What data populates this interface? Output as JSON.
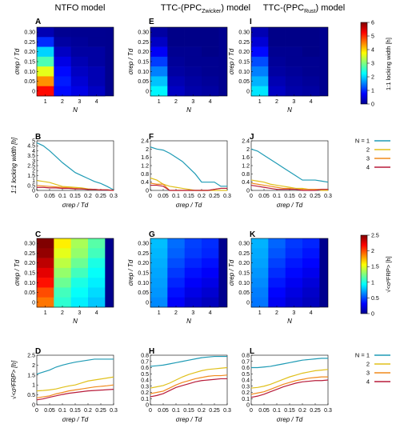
{
  "figure": {
    "column_titles": [
      "NTFO model",
      "TTC-(PPC",
      "TTC-(PPC"
    ],
    "column_title_subs": [
      "",
      "Zwicker",
      "Rust"
    ],
    "column_title_tails": [
      "",
      ") model",
      ") model"
    ],
    "panel_labels": [
      "A",
      "E",
      "I",
      "B",
      "F",
      "J",
      "C",
      "G",
      "K",
      "D",
      "H",
      "L"
    ]
  },
  "chart_data": [
    {
      "id": "A",
      "type": "heatmap",
      "x": [
        1,
        2,
        3,
        4
      ],
      "y": [
        0,
        0.05,
        0.1,
        0.15,
        0.2,
        0.25,
        0.3
      ],
      "z": [
        [
          5.2,
          0.8,
          0.6,
          0.4
        ],
        [
          4.4,
          0.9,
          0.5,
          0.3
        ],
        [
          3.6,
          0.8,
          0.4,
          0.3
        ],
        [
          2.7,
          0.6,
          0.3,
          0.2
        ],
        [
          2.0,
          0.4,
          0.2,
          0.2
        ],
        [
          1.0,
          0.2,
          0.15,
          0.1
        ],
        [
          0.3,
          0.1,
          0.1,
          0.1
        ]
      ],
      "zlim": [
        0,
        6
      ],
      "xlabel": "N",
      "ylabel": "σrep / Td"
    },
    {
      "id": "E",
      "type": "heatmap",
      "x": [
        1,
        2,
        3,
        4
      ],
      "y": [
        0,
        0.05,
        0.1,
        0.15,
        0.2,
        0.25,
        0.3
      ],
      "z": [
        [
          2.2,
          0.4,
          0.25,
          0.2
        ],
        [
          1.9,
          0.3,
          0.2,
          0.15
        ],
        [
          1.5,
          0.2,
          0.15,
          0.1
        ],
        [
          1.1,
          0.15,
          0.1,
          0.1
        ],
        [
          0.7,
          0.1,
          0.1,
          0.05
        ],
        [
          0.4,
          0.05,
          0.05,
          0.05
        ],
        [
          0.2,
          0.05,
          0.05,
          0.05
        ]
      ],
      "zlim": [
        0,
        6
      ],
      "xlabel": "N",
      "ylabel": "σrep / Td"
    },
    {
      "id": "I",
      "type": "heatmap",
      "x": [
        1,
        2,
        3,
        4
      ],
      "y": [
        0,
        0.05,
        0.1,
        0.15,
        0.2,
        0.25,
        0.3
      ],
      "z": [
        [
          2.1,
          0.4,
          0.25,
          0.2
        ],
        [
          1.8,
          0.3,
          0.2,
          0.15
        ],
        [
          1.5,
          0.2,
          0.15,
          0.1
        ],
        [
          1.2,
          0.15,
          0.1,
          0.1
        ],
        [
          0.8,
          0.1,
          0.1,
          0.05
        ],
        [
          0.5,
          0.05,
          0.05,
          0.05
        ],
        [
          0.3,
          0.05,
          0.05,
          0.05
        ]
      ],
      "zlim": [
        0,
        6
      ],
      "xlabel": "N",
      "ylabel": "σrep / Td"
    },
    {
      "id": "B",
      "type": "line",
      "x": [
        0,
        0.025,
        0.05,
        0.075,
        0.1,
        0.125,
        0.15,
        0.175,
        0.2,
        0.225,
        0.25,
        0.275,
        0.3
      ],
      "series": [
        {
          "name": "1",
          "color": "#1f9bb5",
          "values": [
            4.8,
            4.5,
            4.0,
            3.4,
            2.8,
            2.3,
            1.8,
            1.5,
            1.2,
            0.9,
            0.7,
            0.4,
            0.05
          ]
        },
        {
          "name": "2",
          "color": "#e0c01a",
          "values": [
            1.0,
            0.9,
            0.8,
            0.6,
            0.4,
            0.35,
            0.3,
            0.25,
            0.15,
            0.1,
            0.05,
            0.05,
            0.0
          ]
        },
        {
          "name": "3",
          "color": "#f08a1c",
          "values": [
            0.5,
            0.45,
            0.4,
            0.35,
            0.3,
            0.25,
            0.2,
            0.15,
            0.1,
            0.1,
            0.05,
            0.05,
            0.0
          ]
        },
        {
          "name": "4",
          "color": "#b81c3a",
          "values": [
            0.3,
            0.3,
            0.25,
            0.25,
            0.2,
            0.2,
            0.15,
            0.15,
            0.1,
            0.1,
            0.05,
            0.05,
            0.0
          ]
        }
      ],
      "ylim": [
        0,
        5
      ],
      "yticks": [
        0,
        0.5,
        1,
        1.5,
        2,
        2.5,
        3,
        3.5,
        4,
        4.5,
        5
      ],
      "xlabel": "σrep / Td",
      "ylabel": "1:1 locking width [h]"
    },
    {
      "id": "F",
      "type": "line",
      "x": [
        0,
        0.025,
        0.05,
        0.075,
        0.1,
        0.125,
        0.15,
        0.175,
        0.2,
        0.225,
        0.25,
        0.275,
        0.3
      ],
      "series": [
        {
          "name": "1",
          "color": "#1f9bb5",
          "values": [
            2.1,
            2.0,
            1.95,
            1.8,
            1.6,
            1.4,
            1.1,
            0.8,
            0.4,
            0.4,
            0.4,
            0.2,
            0.2
          ]
        },
        {
          "name": "2",
          "color": "#e0c01a",
          "values": [
            0.6,
            0.5,
            0.3,
            0.2,
            0.15,
            0.1,
            0.05,
            0.0,
            0.0,
            0.0,
            0.0,
            0.0,
            0.0
          ]
        },
        {
          "name": "3",
          "color": "#f08a1c",
          "values": [
            0.35,
            0.3,
            0.3,
            0.0,
            0.0,
            0.0,
            0.0,
            0.0,
            0.0,
            0.0,
            0.05,
            0.1,
            0.1
          ]
        },
        {
          "name": "4",
          "color": "#b81c3a",
          "values": [
            0.25,
            0.25,
            0.2,
            0.0,
            0.0,
            0.0,
            0.0,
            0.0,
            0.0,
            0.0,
            0.05,
            0.1,
            0.1
          ]
        }
      ],
      "ylim": [
        0,
        2.4
      ],
      "yticks": [
        0,
        0.4,
        0.8,
        1.2,
        1.6,
        2,
        2.4
      ],
      "xlabel": "σrep / Td",
      "ylabel": ""
    },
    {
      "id": "J",
      "type": "line",
      "x": [
        0,
        0.025,
        0.05,
        0.075,
        0.1,
        0.125,
        0.15,
        0.175,
        0.2,
        0.225,
        0.25,
        0.275,
        0.3
      ],
      "series": [
        {
          "name": "1",
          "color": "#1f9bb5",
          "values": [
            2.0,
            1.9,
            1.7,
            1.5,
            1.3,
            1.1,
            0.9,
            0.7,
            0.5,
            0.5,
            0.5,
            0.45,
            0.4
          ]
        },
        {
          "name": "2",
          "color": "#e0c01a",
          "values": [
            0.5,
            0.45,
            0.4,
            0.3,
            0.25,
            0.2,
            0.15,
            0.1,
            0.1,
            0.05,
            0.05,
            0.0,
            0.0
          ]
        },
        {
          "name": "3",
          "color": "#f08a1c",
          "values": [
            0.35,
            0.3,
            0.25,
            0.2,
            0.15,
            0.1,
            0.1,
            0.05,
            0.05,
            0.05,
            0.05,
            0.05,
            0.05
          ]
        },
        {
          "name": "4",
          "color": "#b81c3a",
          "values": [
            0.25,
            0.2,
            0.15,
            0.1,
            0.05,
            0.05,
            0.05,
            0.05,
            0.0,
            0.0,
            0.0,
            0.05,
            0.05
          ]
        }
      ],
      "ylim": [
        0,
        2.4
      ],
      "yticks": [
        0,
        0.4,
        0.8,
        1.2,
        1.6,
        2,
        2.4
      ],
      "xlabel": "σrep / Td",
      "ylabel": ""
    },
    {
      "id": "C",
      "type": "heatmap",
      "x": [
        1,
        2,
        3,
        4
      ],
      "y": [
        0,
        0.05,
        0.1,
        0.15,
        0.2,
        0.25,
        0.3
      ],
      "z": [
        [
          1.9,
          1.05,
          0.9,
          0.8
        ],
        [
          2.0,
          1.1,
          0.95,
          0.85
        ],
        [
          2.15,
          1.2,
          1.0,
          0.9
        ],
        [
          2.25,
          1.3,
          1.1,
          0.95
        ],
        [
          2.35,
          1.4,
          1.2,
          1.0
        ],
        [
          2.45,
          1.5,
          1.3,
          1.1
        ],
        [
          2.5,
          1.6,
          1.35,
          1.15
        ]
      ],
      "zlim": [
        0,
        2.5
      ],
      "xlabel": "N",
      "ylabel": "σrep / Td"
    },
    {
      "id": "G",
      "type": "heatmap",
      "x": [
        1,
        2,
        3,
        4
      ],
      "y": [
        0,
        0.05,
        0.1,
        0.15,
        0.2,
        0.25,
        0.3
      ],
      "z": [
        [
          0.65,
          0.3,
          0.2,
          0.15
        ],
        [
          0.68,
          0.35,
          0.25,
          0.2
        ],
        [
          0.7,
          0.4,
          0.3,
          0.25
        ],
        [
          0.72,
          0.45,
          0.35,
          0.3
        ],
        [
          0.74,
          0.5,
          0.4,
          0.35
        ],
        [
          0.76,
          0.55,
          0.45,
          0.4
        ],
        [
          0.78,
          0.58,
          0.47,
          0.42
        ]
      ],
      "zlim": [
        0,
        2.5
      ],
      "xlabel": "N",
      "ylabel": "σrep / Td"
    },
    {
      "id": "K",
      "type": "heatmap",
      "x": [
        1,
        2,
        3,
        4
      ],
      "y": [
        0,
        0.05,
        0.1,
        0.15,
        0.2,
        0.25,
        0.3
      ],
      "z": [
        [
          0.6,
          0.28,
          0.2,
          0.15
        ],
        [
          0.62,
          0.32,
          0.24,
          0.18
        ],
        [
          0.65,
          0.37,
          0.28,
          0.22
        ],
        [
          0.68,
          0.42,
          0.33,
          0.27
        ],
        [
          0.71,
          0.47,
          0.37,
          0.32
        ],
        [
          0.73,
          0.52,
          0.42,
          0.36
        ],
        [
          0.75,
          0.56,
          0.45,
          0.4
        ]
      ],
      "zlim": [
        0,
        2.5
      ],
      "xlabel": "N",
      "ylabel": "σrep / Td"
    },
    {
      "id": "D",
      "type": "line",
      "x": [
        0,
        0.025,
        0.05,
        0.075,
        0.1,
        0.125,
        0.15,
        0.175,
        0.2,
        0.225,
        0.25,
        0.275,
        0.3
      ],
      "series": [
        {
          "name": "1",
          "color": "#1f9bb5",
          "values": [
            1.55,
            1.65,
            1.75,
            1.9,
            2.0,
            2.08,
            2.15,
            2.2,
            2.25,
            2.3,
            2.3,
            2.3,
            2.3
          ]
        },
        {
          "name": "2",
          "color": "#e0c01a",
          "values": [
            0.7,
            0.72,
            0.75,
            0.8,
            0.88,
            0.95,
            1.0,
            1.1,
            1.2,
            1.25,
            1.3,
            1.35,
            1.4
          ]
        },
        {
          "name": "3",
          "color": "#f08a1c",
          "values": [
            0.35,
            0.4,
            0.45,
            0.55,
            0.62,
            0.7,
            0.75,
            0.8,
            0.85,
            0.9,
            0.93,
            0.96,
            1.0
          ]
        },
        {
          "name": "4",
          "color": "#b81c3a",
          "values": [
            0.25,
            0.3,
            0.38,
            0.45,
            0.52,
            0.58,
            0.62,
            0.66,
            0.7,
            0.72,
            0.74,
            0.76,
            0.78
          ]
        }
      ],
      "ylim": [
        0,
        2.5
      ],
      "yticks": [
        0,
        0.5,
        1,
        1.5,
        2,
        2.5
      ],
      "xlabel": "σrep / Td",
      "ylabel": "√<σ²FRP> [h]"
    },
    {
      "id": "H",
      "type": "line",
      "x": [
        0,
        0.025,
        0.05,
        0.075,
        0.1,
        0.125,
        0.15,
        0.175,
        0.2,
        0.225,
        0.25,
        0.275,
        0.3
      ],
      "series": [
        {
          "name": "1",
          "color": "#1f9bb5",
          "values": [
            0.62,
            0.63,
            0.64,
            0.66,
            0.68,
            0.7,
            0.72,
            0.74,
            0.76,
            0.77,
            0.78,
            0.78,
            0.78
          ]
        },
        {
          "name": "2",
          "color": "#e0c01a",
          "values": [
            0.27,
            0.29,
            0.31,
            0.35,
            0.4,
            0.45,
            0.49,
            0.52,
            0.55,
            0.57,
            0.58,
            0.59,
            0.6
          ]
        },
        {
          "name": "3",
          "color": "#f08a1c",
          "values": [
            0.18,
            0.2,
            0.22,
            0.27,
            0.32,
            0.36,
            0.39,
            0.42,
            0.44,
            0.46,
            0.47,
            0.47,
            0.48
          ]
        },
        {
          "name": "4",
          "color": "#b81c3a",
          "values": [
            0.13,
            0.15,
            0.18,
            0.23,
            0.28,
            0.31,
            0.34,
            0.37,
            0.39,
            0.4,
            0.41,
            0.42,
            0.42
          ]
        }
      ],
      "ylim": [
        0,
        0.8
      ],
      "yticks": [
        0,
        0.1,
        0.2,
        0.3,
        0.4,
        0.5,
        0.6,
        0.7,
        0.8
      ],
      "xlabel": "σrep / Td",
      "ylabel": ""
    },
    {
      "id": "L",
      "type": "line",
      "x": [
        0,
        0.025,
        0.05,
        0.075,
        0.1,
        0.125,
        0.15,
        0.175,
        0.2,
        0.225,
        0.25,
        0.275,
        0.3
      ],
      "series": [
        {
          "name": "1",
          "color": "#1f9bb5",
          "values": [
            0.6,
            0.6,
            0.61,
            0.62,
            0.64,
            0.66,
            0.68,
            0.7,
            0.72,
            0.73,
            0.74,
            0.75,
            0.75
          ]
        },
        {
          "name": "2",
          "color": "#e0c01a",
          "values": [
            0.27,
            0.28,
            0.3,
            0.33,
            0.37,
            0.41,
            0.45,
            0.48,
            0.51,
            0.53,
            0.55,
            0.56,
            0.57
          ]
        },
        {
          "name": "3",
          "color": "#f08a1c",
          "values": [
            0.17,
            0.19,
            0.21,
            0.25,
            0.29,
            0.33,
            0.36,
            0.39,
            0.41,
            0.43,
            0.44,
            0.45,
            0.45
          ]
        },
        {
          "name": "4",
          "color": "#b81c3a",
          "values": [
            0.12,
            0.14,
            0.17,
            0.21,
            0.25,
            0.29,
            0.32,
            0.35,
            0.37,
            0.38,
            0.39,
            0.39,
            0.4
          ]
        }
      ],
      "ylim": [
        0,
        0.8
      ],
      "yticks": [
        0,
        0.1,
        0.2,
        0.3,
        0.4,
        0.5,
        0.6,
        0.7,
        0.8
      ],
      "xlabel": "σrep / Td",
      "ylabel": ""
    }
  ],
  "heat_axes": {
    "xticks": [
      "1",
      "2",
      "3",
      "4"
    ],
    "yticks": [
      "0",
      "0.05",
      "0.10",
      "0.15",
      "0.20",
      "0.25",
      "0.30"
    ]
  },
  "line_axes": {
    "xticks": [
      "0",
      "0.05",
      "0.1",
      "0.15",
      "0.2",
      "0.25",
      "0.3"
    ]
  },
  "colorbars": [
    {
      "id": "cb-top",
      "ticks": [
        "0",
        "1",
        "2",
        "3",
        "4",
        "5",
        "6"
      ],
      "label": "1:1 locking width [h]"
    },
    {
      "id": "cb-bottom",
      "ticks": [
        "0",
        "0.5",
        "1",
        "1.5",
        "2",
        "2.5"
      ],
      "label": "√<σ²FRP> [h]"
    }
  ],
  "legend": {
    "title_prefix": "N = ",
    "entries": [
      "1",
      "2",
      "3",
      "4"
    ],
    "colors": [
      "#1f9bb5",
      "#e0c01a",
      "#f08a1c",
      "#b81c3a"
    ]
  }
}
